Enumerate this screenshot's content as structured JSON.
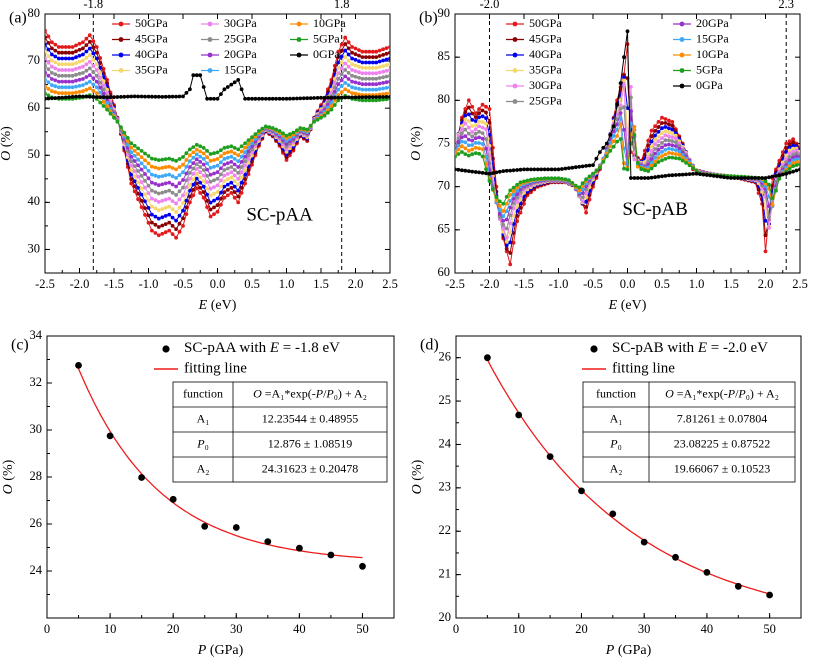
{
  "chart_data": [
    {
      "type": "line",
      "panel_label": "(a)",
      "title": "SC-pAA",
      "xlabel": "E (eV)",
      "ylabel": "O (%)",
      "xlim": [
        -2.5,
        2.5
      ],
      "ylim": [
        25,
        80
      ],
      "xticks": [
        "-2.5",
        "-2.0",
        "-1.5",
        "-1.0",
        "-0.5",
        "0.0",
        "0.5",
        "1.0",
        "1.5",
        "2.0",
        "2.5"
      ],
      "yticks": [
        "30",
        "40",
        "50",
        "60",
        "70",
        "80"
      ],
      "vlines": [
        -1.8,
        1.8
      ],
      "vline_labels": [
        "-1.8",
        "1.8"
      ],
      "legend": [
        "50GPa",
        "45GPa",
        "40GPa",
        "35GPa",
        "30GPa",
        "25GPa",
        "20GPa",
        "15GPa",
        "10GPa",
        "5GPa",
        "0GPa"
      ],
      "legend_layout": "3 columns, top-center",
      "series": [
        {
          "name": "50GPa",
          "color": "#e31a1c"
        },
        {
          "name": "45GPa",
          "color": "#8b0000"
        },
        {
          "name": "40GPa",
          "color": "#0000ee"
        },
        {
          "name": "35GPa",
          "color": "#f5d76e"
        },
        {
          "name": "30GPa",
          "color": "#ee82ee"
        },
        {
          "name": "25GPa",
          "color": "#8c8c8c"
        },
        {
          "name": "20GPa",
          "color": "#9932cc"
        },
        {
          "name": "15GPa",
          "color": "#3fa9f5"
        },
        {
          "name": "10GPa",
          "color": "#ff8c00"
        },
        {
          "name": "5GPa",
          "color": "#1e9e1e"
        },
        {
          "name": "0GPa",
          "color": "#000000"
        }
      ]
    },
    {
      "type": "line",
      "panel_label": "(b)",
      "title": "SC-pAB",
      "xlabel": "E (eV)",
      "ylabel": "O (%)",
      "xlim": [
        -2.5,
        2.5
      ],
      "ylim": [
        60,
        90
      ],
      "xticks": [
        "-2.5",
        "-2.0",
        "-1.5",
        "-1.0",
        "-0.5",
        "0.0",
        "0.5",
        "1.0",
        "1.5",
        "2.0",
        "2.5"
      ],
      "yticks": [
        "60",
        "65",
        "70",
        "75",
        "80",
        "85",
        "90"
      ],
      "vlines": [
        -2.0,
        2.3
      ],
      "vline_labels": [
        "-2.0",
        "2.3"
      ],
      "legend": [
        "50GPa",
        "45GPa",
        "40GPa",
        "35GPa",
        "30GPa",
        "25GPa",
        "20GPa",
        "15GPa",
        "10GPa",
        "5GPa",
        "0GPa"
      ],
      "legend_layout": "2 columns, top",
      "series": [
        {
          "name": "50GPa",
          "color": "#e31a1c"
        },
        {
          "name": "45GPa",
          "color": "#8b0000"
        },
        {
          "name": "40GPa",
          "color": "#0000ee"
        },
        {
          "name": "35GPa",
          "color": "#f5d76e"
        },
        {
          "name": "30GPa",
          "color": "#ee82ee"
        },
        {
          "name": "25GPa",
          "color": "#8c8c8c"
        },
        {
          "name": "20GPa",
          "color": "#9932cc"
        },
        {
          "name": "15GPa",
          "color": "#3fa9f5"
        },
        {
          "name": "10GPa",
          "color": "#ff8c00"
        },
        {
          "name": "5GPa",
          "color": "#1e9e1e"
        },
        {
          "name": "0GPa",
          "color": "#000000"
        }
      ]
    },
    {
      "type": "scatter",
      "panel_label": "(c)",
      "xlabel": "P (GPa)",
      "ylabel": "O (%)",
      "xlim": [
        0,
        55
      ],
      "ylim": [
        22,
        34
      ],
      "xticks": [
        "0",
        "10",
        "20",
        "30",
        "40",
        "50"
      ],
      "yticks": [
        "24",
        "26",
        "28",
        "30",
        "32",
        "34"
      ],
      "legend": [
        "SC-pAA with E = -1.8 eV",
        "fitting line"
      ],
      "x": [
        5,
        10,
        15,
        20,
        25,
        30,
        35,
        40,
        45,
        50
      ],
      "y": [
        32.75,
        29.75,
        27.98,
        27.05,
        25.9,
        25.85,
        25.25,
        24.97,
        24.68,
        24.2
      ],
      "fit": {
        "A1": 12.23544,
        "P0": 12.876,
        "A2": 24.31623
      },
      "table": {
        "header": [
          "function",
          "O =A₁*exp(-P/P₀) + A₂"
        ],
        "rows": [
          [
            "A₁",
            "12.23544 ± 0.48955"
          ],
          [
            "P₀",
            "12.876 ± 1.08519"
          ],
          [
            "A₂",
            "24.31623 ± 0.20478"
          ]
        ]
      }
    },
    {
      "type": "scatter",
      "panel_label": "(d)",
      "xlabel": "P (GPa)",
      "ylabel": "O (%)",
      "xlim": [
        0,
        55
      ],
      "ylim": [
        20,
        26.5
      ],
      "xticks": [
        "0",
        "10",
        "20",
        "30",
        "40",
        "50"
      ],
      "yticks": [
        "20",
        "21",
        "22",
        "23",
        "24",
        "25",
        "26"
      ],
      "legend": [
        "SC-pAB with E = -2.0 eV",
        "fitting line"
      ],
      "x": [
        5,
        10,
        15,
        20,
        25,
        30,
        35,
        40,
        45,
        50
      ],
      "y": [
        26.0,
        24.68,
        23.72,
        22.93,
        22.4,
        21.75,
        21.4,
        21.05,
        20.73,
        20.53
      ],
      "fit": {
        "A1": 7.81261,
        "P0": 23.08225,
        "A2": 19.66067
      },
      "table": {
        "header": [
          "function",
          "O =A₁*exp(-P/P₀) + A₂"
        ],
        "rows": [
          [
            "A₁",
            "7.81261 ± 0.07804"
          ],
          [
            "P₀",
            "23.08225 ± 0.87522"
          ],
          [
            "A₂",
            "19.66067 ± 0.10523"
          ]
        ]
      }
    }
  ]
}
